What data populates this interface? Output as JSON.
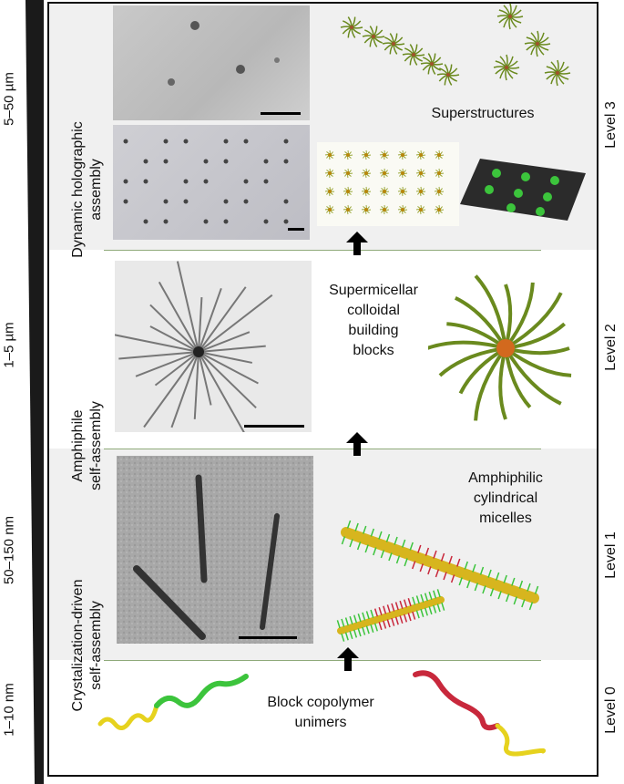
{
  "scale_axis": {
    "labels": [
      "5–50 µm",
      "1–5 µm",
      "50–150 nm",
      "1–10 nm"
    ]
  },
  "levels": [
    "Level 3",
    "Level 2",
    "Level 1",
    "Level 0"
  ],
  "processes": {
    "top": [
      "Dynamic holographic",
      "assembly"
    ],
    "middle": [
      "Amphiphile",
      "self-assembly"
    ],
    "bottom": [
      "Crystalization-driven",
      "self-assembly"
    ]
  },
  "captions": {
    "superstructures": "Superstructures",
    "building_blocks": [
      "Supermicellar",
      "colloidal",
      "building",
      "blocks"
    ],
    "micelles": [
      "Amphiphilic",
      "cylindrical",
      "micelles"
    ],
    "unimers": [
      "Block copolymer",
      "unimers"
    ]
  },
  "colors": {
    "level3_bg": "#f0f0f0",
    "level2_bg": "#ffffff",
    "level1_bg": "#f0f0f0",
    "level0_bg": "#ffffff",
    "divider": "#8faa7a",
    "green": "#3cc43c",
    "yellow": "#e6d21e",
    "red": "#c8283c",
    "core": "#d7b51e"
  },
  "icons": [
    "up-arrow-icon",
    "wedge-scale-icon"
  ]
}
